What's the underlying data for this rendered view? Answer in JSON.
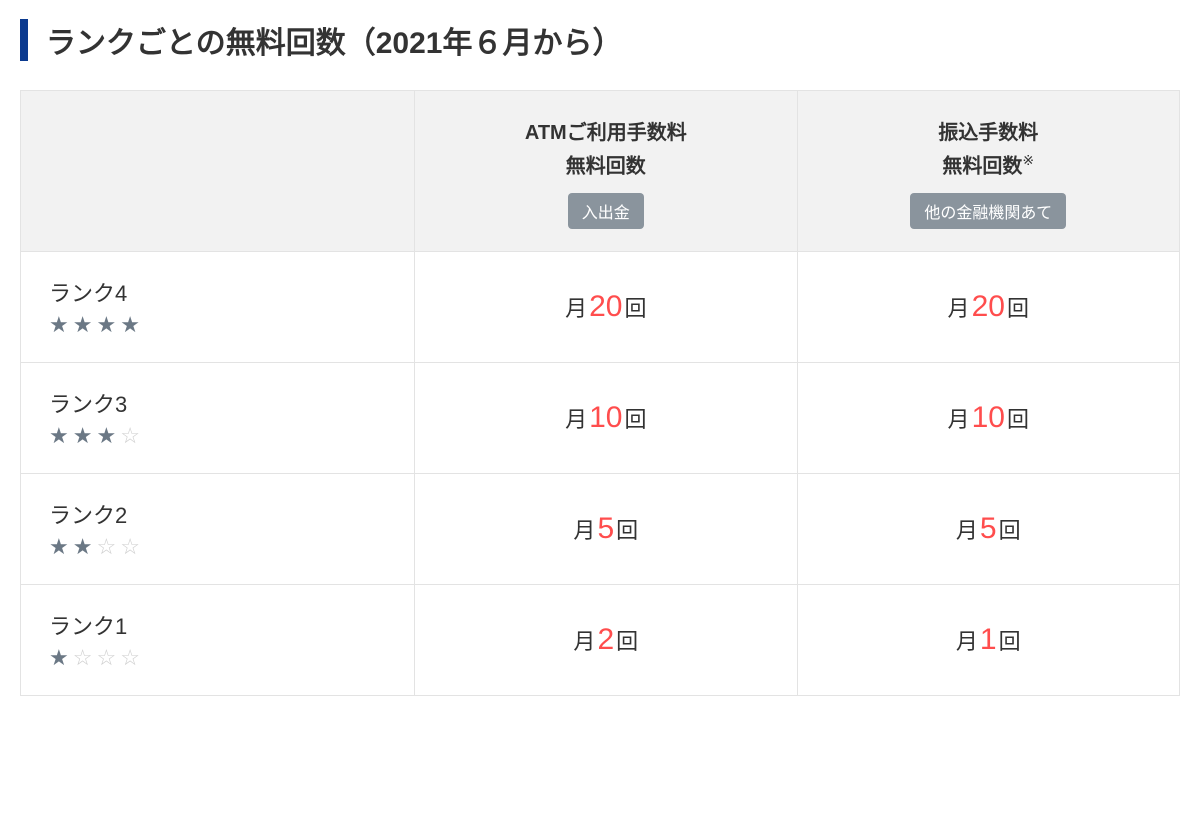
{
  "title": "ランクごとの無料回数（2021年６月から）",
  "columns": {
    "rank": "",
    "atm": {
      "line1": "ATMご利用手数料",
      "line2": "無料回数",
      "badge": "入出金",
      "note": ""
    },
    "transfer": {
      "line1": "振込手数料",
      "line2": "無料回数",
      "badge": "他の金融機関あて",
      "note": "※"
    }
  },
  "valuePrefix": "月",
  "valueSuffix": "回",
  "rows": [
    {
      "label": "ランク4",
      "stars": 4,
      "atm": "20",
      "transfer": "20"
    },
    {
      "label": "ランク3",
      "stars": 3,
      "atm": "10",
      "transfer": "10"
    },
    {
      "label": "ランク2",
      "stars": 2,
      "atm": "5",
      "transfer": "5"
    },
    {
      "label": "ランク1",
      "stars": 1,
      "atm": "2",
      "transfer": "1"
    }
  ],
  "maxStars": 4,
  "colors": {
    "accent": "#0b3a8f",
    "headerText": "#333333",
    "headerBg": "#f2f2f2",
    "border": "#e3e3e3",
    "badgeBg": "#8a949d",
    "badgeText": "#ffffff",
    "countHighlight": "#ff4d4d",
    "starFilled": "#6b7885",
    "starEmpty": "#cfcfcf",
    "bodyBg": "#ffffff"
  }
}
